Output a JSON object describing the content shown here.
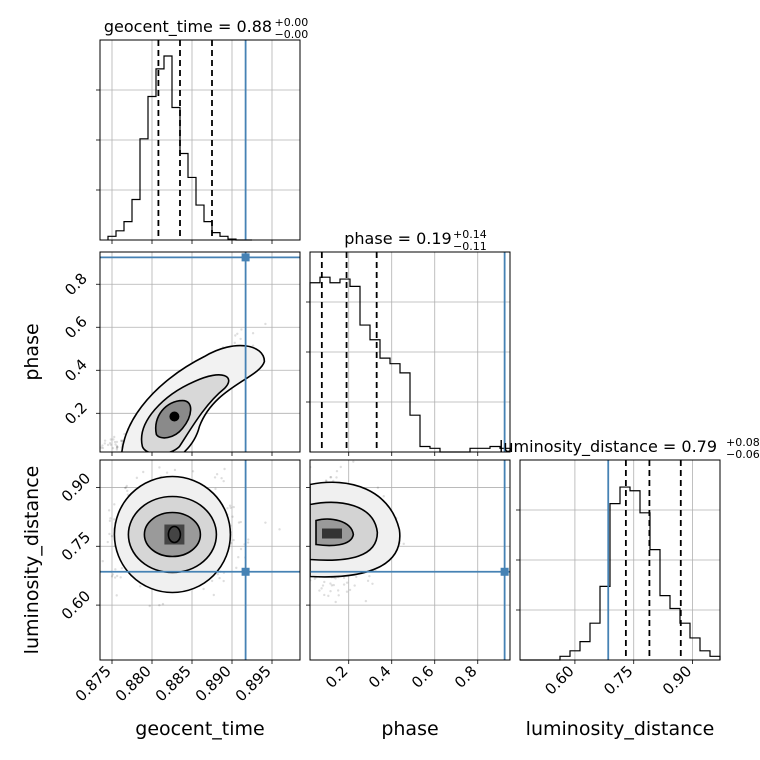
{
  "chart_data": {
    "type": "corner",
    "parameters": [
      "geocent_time",
      "phase",
      "luminosity_distance"
    ],
    "truth": {
      "geocent_time": 0.8917,
      "phase": 0.925,
      "luminosity_distance": 0.685
    },
    "truth_color": "#4682b4",
    "ranges": {
      "geocent_time": [
        0.8735,
        0.8985
      ],
      "phase": [
        0.02,
        0.95
      ],
      "luminosity_distance": [
        0.46,
        0.97
      ]
    },
    "ticks": {
      "geocent_time": {
        "values": [
          0.875,
          0.88,
          0.885,
          0.89,
          0.895
        ],
        "labels": [
          "0.875",
          "0.880",
          "0.885",
          "0.890",
          "0.895"
        ]
      },
      "phase": {
        "values": [
          0.2,
          0.4,
          0.6,
          0.8
        ],
        "labels": [
          "0.2",
          "0.4",
          "0.6",
          "0.8"
        ]
      },
      "luminosity_distance": {
        "values": [
          0.6,
          0.75,
          0.9
        ],
        "labels": [
          "0.60",
          "0.75",
          "0.90"
        ]
      }
    },
    "titles": {
      "geocent_time": {
        "text": "geocent_time = 0.88",
        "plus": "+0.00",
        "minus": "−0.00"
      },
      "phase": {
        "text": "phase = 0.19",
        "plus": "+0.14",
        "minus": "−0.11"
      },
      "luminosity_distance": {
        "text": "luminosity_distance = 0.79",
        "plus": "+0.08",
        "minus": "−0.06"
      }
    },
    "quantiles": {
      "geocent_time": [
        0.8808,
        0.8835,
        0.8875
      ],
      "phase": [
        0.075,
        0.19,
        0.33
      ],
      "luminosity_distance": [
        0.73,
        0.79,
        0.87
      ]
    },
    "histograms": {
      "geocent_time": {
        "edges_start": 0.8745,
        "bin_width": 0.001,
        "counts": [
          0.02,
          0.05,
          0.1,
          0.22,
          0.55,
          0.78,
          0.93,
          1.0,
          0.72,
          0.47,
          0.34,
          0.19,
          0.1,
          0.04,
          0.02,
          0.005,
          0.0,
          0.0
        ]
      },
      "phase": {
        "edges_start": 0.02,
        "bin_width": 0.0465,
        "counts": [
          0.92,
          0.95,
          0.92,
          0.94,
          0.9,
          0.69,
          0.61,
          0.51,
          0.48,
          0.43,
          0.2,
          0.03,
          0.02,
          0.0,
          0.0,
          0.0,
          0.02,
          0.02,
          0.03,
          0.02
        ]
      },
      "luminosity_distance": {
        "edges_start": 0.46,
        "bin_width": 0.0255,
        "counts": [
          0.0,
          0.0,
          0.0,
          0.0,
          0.02,
          0.05,
          0.1,
          0.2,
          0.4,
          0.85,
          0.94,
          0.92,
          0.8,
          0.6,
          0.35,
          0.28,
          0.2,
          0.12,
          0.05,
          0.02
        ]
      }
    },
    "density_2d": {
      "phase_vs_geocent_time": {
        "center": [
          0.8828,
          0.185
        ],
        "trend": [
          0.0061,
          0.2
        ],
        "spread_across": 0.05,
        "note_cluster": [
          0.8905,
          0.88
        ]
      },
      "luminosity_distance_vs_geocent_time": {
        "center": [
          0.8828,
          0.78
        ],
        "spread": [
          0.0035,
          0.06
        ]
      },
      "luminosity_distance_vs_phase": {
        "center": [
          0.16,
          0.78
        ],
        "spread": [
          0.11,
          0.06
        ]
      }
    },
    "grid": true
  }
}
